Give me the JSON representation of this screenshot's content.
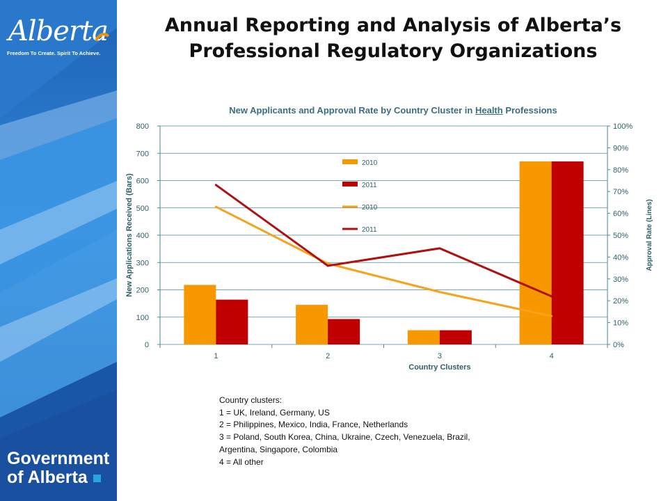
{
  "header": {
    "logo_text": "Alberta",
    "logo_tagline": "Freedom To Create. Spirit To Achieve.",
    "title_line1": "Annual Reporting and Analysis of Alberta’s",
    "title_line2": "Professional Regulatory Organizations"
  },
  "footer": {
    "gov_line1": "Government",
    "gov_line2": "of Alberta"
  },
  "chart_title": {
    "prefix": "New Applicants and Approval Rate by Country Cluster in ",
    "underlined": "Health",
    "suffix": " Professions"
  },
  "chart_data": {
    "type": "bar",
    "title": "New Applicants and Approval Rate by Country Cluster in Health Professions",
    "xlabel": "Country Clusters",
    "ylabel": "New Applications Received (Bars)",
    "y2label": "Approval Rate (Lines)",
    "categories": [
      "1",
      "2",
      "3",
      "4"
    ],
    "ylim": [
      0,
      800
    ],
    "yticks": [
      0,
      100,
      200,
      300,
      400,
      500,
      600,
      700,
      800
    ],
    "y2lim": [
      0,
      1
    ],
    "y2ticks": [
      "0%",
      "10%",
      "20%",
      "30%",
      "40%",
      "50%",
      "60%",
      "70%",
      "80%",
      "90%",
      "100%"
    ],
    "grid": true,
    "legend_position": "upper-middle",
    "bar_series": [
      {
        "name": "2010",
        "color": "#f79800",
        "values": [
          218,
          145,
          52,
          670
        ]
      },
      {
        "name": "2011",
        "color": "#c00000",
        "values": [
          164,
          93,
          52,
          670
        ]
      }
    ],
    "line_series": [
      {
        "name": "2010",
        "color": "#f7a21b",
        "values": [
          0.63,
          0.37,
          0.24,
          0.13
        ]
      },
      {
        "name": "2011",
        "color": "#b01010",
        "values": [
          0.73,
          0.36,
          0.44,
          0.22
        ]
      }
    ]
  },
  "notes": {
    "heading": "Country clusters:",
    "lines": [
      "1 = UK, Ireland, Germany, US",
      "2 = Philippines, Mexico, India, France, Netherlands",
      "3 = Poland, South Korea, China, Ukraine, Czech, Venezuela, Brazil,",
      "Argentina, Singapore, Colombia",
      "4 = All other"
    ]
  }
}
